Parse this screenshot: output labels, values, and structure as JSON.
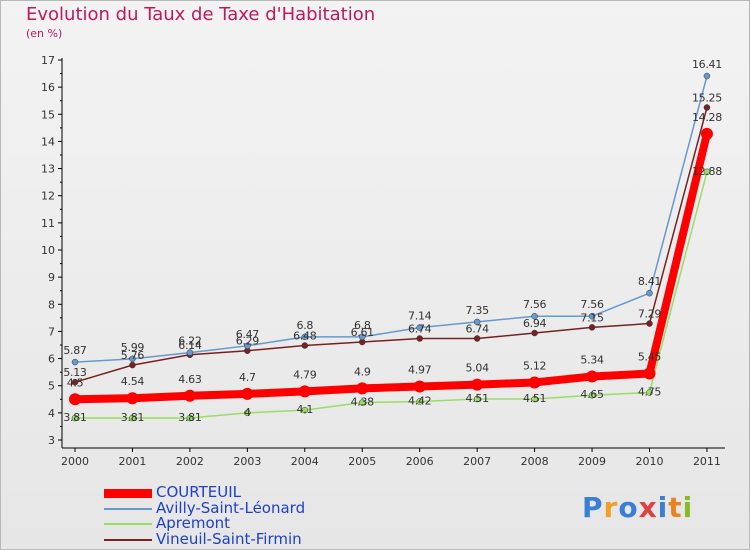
{
  "title": "Evolution du Taux de Taxe d'Habitation",
  "subtitle": "(en %)",
  "logo": {
    "text": "Proxiti",
    "colors": [
      "#3a7fd5",
      "#f0a028",
      "#3a7fd5",
      "#e04040",
      "#3a7fd5",
      "#e88420",
      "#88bb22"
    ]
  },
  "colors": {
    "courteuil": "#ff0000",
    "avilly": "#6699cc",
    "apremont": "#99dd66",
    "vineuil": "#772222"
  },
  "chart_data": {
    "type": "line",
    "xlabel": "",
    "ylabel": "",
    "x": [
      "2000",
      "2001",
      "2002",
      "2003",
      "2004",
      "2005",
      "2006",
      "2007",
      "2008",
      "2009",
      "2010",
      "2011"
    ],
    "yticks": [
      "3",
      "4",
      "5",
      "6",
      "7",
      "8",
      "9",
      "10",
      "11",
      "12",
      "13",
      "14",
      "15",
      "16",
      "17"
    ],
    "ylim": [
      3,
      17
    ],
    "grid": false,
    "legend_position": "bottom-left",
    "series": [
      {
        "name": "COURTEUIL",
        "key": "courteuil",
        "values": [
          4.5,
          4.54,
          4.63,
          4.7,
          4.79,
          4.9,
          4.97,
          5.04,
          5.12,
          5.34,
          5.45,
          14.28
        ],
        "labels": [
          "4.5",
          "4.54",
          "4.63",
          "4.7",
          "4.79",
          "4.9",
          "4.97",
          "5.04",
          "5.12",
          "5.34",
          "5.45",
          "14.28"
        ]
      },
      {
        "name": "Avilly-Saint-Léonard",
        "key": "avilly",
        "values": [
          5.87,
          5.99,
          6.22,
          6.47,
          6.8,
          6.8,
          7.14,
          7.35,
          7.56,
          7.56,
          8.41,
          16.41
        ],
        "labels": [
          "5.87",
          "5.99",
          "6.22",
          "6.47",
          "6.8",
          "6.8",
          "7.14",
          "7.35",
          "7.56",
          "7.56",
          "8.41",
          "16.41"
        ]
      },
      {
        "name": "Apremont",
        "key": "apremont",
        "values": [
          3.81,
          3.81,
          3.81,
          4.0,
          4.1,
          4.38,
          4.42,
          4.51,
          4.51,
          4.65,
          4.75,
          12.88
        ],
        "labels": [
          "3.81",
          "3.81",
          "3.81",
          "4",
          "4.1",
          "4.38",
          "4.42",
          "4.51",
          "4.51",
          "4.65",
          "4.75",
          "12.88"
        ]
      },
      {
        "name": "Vineuil-Saint-Firmin",
        "key": "vineuil",
        "values": [
          5.13,
          5.76,
          6.14,
          6.29,
          6.48,
          6.61,
          6.74,
          6.74,
          6.94,
          7.15,
          7.29,
          15.25
        ],
        "labels": [
          "5.13",
          "5.76",
          "6.14",
          "6.29",
          "6.48",
          "6.61",
          "6.74",
          "6.74",
          "6.94",
          "7.15",
          "7.29",
          "15.25"
        ]
      }
    ]
  },
  "legend": {
    "items": [
      {
        "label": "COURTEUIL",
        "key": "courteuil"
      },
      {
        "label": "Avilly-Saint-Léonard",
        "key": "avilly"
      },
      {
        "label": "Apremont",
        "key": "apremont"
      },
      {
        "label": "Vineuil-Saint-Firmin",
        "key": "vineuil"
      }
    ]
  }
}
